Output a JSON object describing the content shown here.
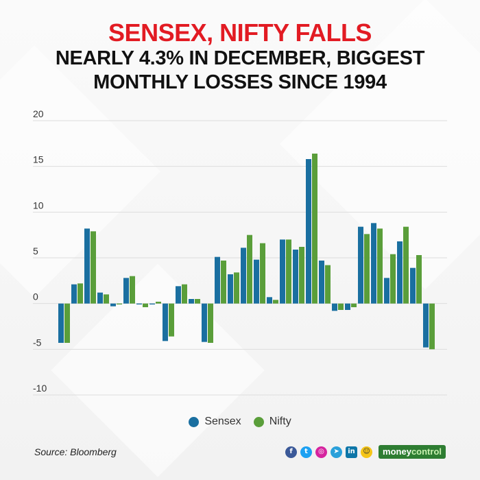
{
  "title": {
    "line1": "SENSEX, NIFTY FALLS",
    "line2": "NEARLY 4.3% IN DECEMBER, BIGGEST",
    "line3": "MONTHLY LOSSES SINCE 1994"
  },
  "colors": {
    "title_accent": "#e21b23",
    "sensex": "#1a6fa0",
    "nifty": "#5a9e3a",
    "grid": "#dcdcdc",
    "brand_green": "#2e7d32"
  },
  "chart_data": {
    "type": "bar",
    "ylim": [
      -10,
      20
    ],
    "yticks": [
      20,
      15,
      10,
      5,
      0,
      -5,
      -10
    ],
    "grid": true,
    "legend_position": "bottom",
    "series": [
      {
        "name": "Sensex",
        "values": [
          -4.3,
          2.1,
          8.2,
          1.2,
          -0.3,
          2.8,
          -0.1,
          -0.1,
          -4.1,
          1.9,
          0.5,
          -4.2,
          5.1,
          3.2,
          6.1,
          4.8,
          0.7,
          7.0,
          5.9,
          15.8,
          4.7,
          -0.8,
          -0.7,
          8.4,
          8.8,
          2.8,
          6.8,
          3.9,
          -4.8
        ]
      },
      {
        "name": "Nifty",
        "values": [
          -4.3,
          2.2,
          7.9,
          1.0,
          -0.1,
          3.0,
          -0.4,
          0.2,
          -3.6,
          2.1,
          0.5,
          -4.3,
          4.7,
          3.4,
          7.5,
          6.6,
          0.4,
          7.0,
          6.2,
          16.4,
          4.2,
          -0.7,
          -0.4,
          7.6,
          8.2,
          5.4,
          8.4,
          5.3,
          -5.0
        ]
      }
    ]
  },
  "legend": {
    "sensex": "Sensex",
    "nifty": "Nifty"
  },
  "footer": {
    "source": "Source: Bloomberg",
    "brand_part1": "money",
    "brand_part2": "control",
    "icons": [
      "facebook-icon",
      "twitter-icon",
      "instagram-icon",
      "telegram-icon",
      "linkedin-icon",
      "snapchat-icon"
    ]
  }
}
